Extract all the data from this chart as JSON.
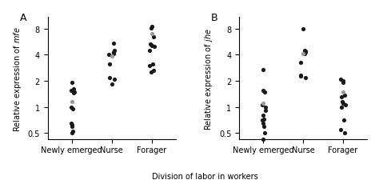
{
  "panel_A_label": "A",
  "panel_B_label": "B",
  "ylabel_A": "Relative expression of ",
  "ylabel_A_italic": "mfe",
  "ylabel_B": "Relative expression of ",
  "ylabel_B_italic": "jhe",
  "xlabel": "Division of labor in workers",
  "categories": [
    "Newly emerged",
    "Nurse",
    "Forager"
  ],
  "ylim": [
    0.42,
    11
  ],
  "yticks": [
    0.5,
    1,
    2,
    4,
    8
  ],
  "panel_A": {
    "newly_emerged_black": [
      0.5,
      0.52,
      0.6,
      0.62,
      0.65,
      0.95,
      1.0,
      1.45,
      1.5,
      1.55,
      1.6,
      1.9
    ],
    "newly_emerged_gray": [
      1.15
    ],
    "nurse_black": [
      1.85,
      2.1,
      2.2,
      3.15,
      4.0,
      4.1,
      4.2,
      4.3,
      4.5,
      5.5
    ],
    "nurse_gray": [
      3.85
    ],
    "forager_black": [
      2.55,
      2.65,
      3.0,
      3.1,
      4.5,
      5.0,
      5.1,
      5.2,
      5.3,
      6.5,
      8.2,
      8.6
    ],
    "forager_gray": [
      7.0
    ]
  },
  "panel_B": {
    "newly_emerged_black": [
      0.42,
      0.5,
      0.6,
      0.65,
      0.7,
      0.72,
      0.8,
      0.9,
      1.0,
      1.05,
      1.5,
      1.55,
      2.7
    ],
    "newly_emerged_gray": [
      1.1
    ],
    "nurse_black": [
      2.2,
      2.25,
      2.3,
      3.25,
      4.1,
      4.2,
      4.3,
      4.4,
      4.5,
      8.0
    ],
    "nurse_gray": [
      4.1
    ],
    "forager_black": [
      0.5,
      0.55,
      0.7,
      1.0,
      1.05,
      1.1,
      1.15,
      1.3,
      1.35,
      1.9,
      2.0,
      2.1
    ],
    "forager_gray": [
      1.5
    ]
  },
  "black_color": "#1a1a1a",
  "gray_color": "#999999",
  "dot_size": 14,
  "fig_width": 4.74,
  "fig_height": 2.26,
  "dpi": 100,
  "label_fontsize": 7,
  "panel_label_fontsize": 9
}
